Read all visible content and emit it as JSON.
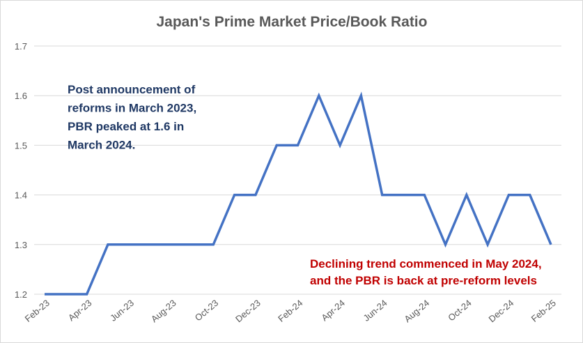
{
  "chart_data": {
    "type": "line",
    "title": "Japan's Prime Market Price/Book Ratio",
    "xlabel": "",
    "ylabel": "",
    "x": [
      "Feb-23",
      "Mar-23",
      "Apr-23",
      "May-23",
      "Jun-23",
      "Jul-23",
      "Aug-23",
      "Sep-23",
      "Oct-23",
      "Nov-23",
      "Dec-23",
      "Jan-24",
      "Feb-24",
      "Mar-24",
      "Apr-24",
      "May-24",
      "Jun-24",
      "Jul-24",
      "Aug-24",
      "Sep-24",
      "Oct-24",
      "Nov-24",
      "Dec-24",
      "Jan-25",
      "Feb-25"
    ],
    "xtick_labels": [
      "Feb-23",
      "Apr-23",
      "Jun-23",
      "Aug-23",
      "Oct-23",
      "Dec-23",
      "Feb-24",
      "Apr-24",
      "Jun-24",
      "Aug-24",
      "Oct-24",
      "Dec-24",
      "Feb-25"
    ],
    "series": [
      {
        "values": [
          1.2,
          1.2,
          1.2,
          1.3,
          1.3,
          1.3,
          1.3,
          1.3,
          1.3,
          1.4,
          1.4,
          1.5,
          1.5,
          1.6,
          1.5,
          1.6,
          1.4,
          1.4,
          1.4,
          1.3,
          1.4,
          1.3,
          1.4,
          1.4,
          1.3
        ]
      }
    ],
    "ylim": [
      1.2,
      1.7
    ],
    "yticks": [
      "1.2",
      "1.3",
      "1.4",
      "1.5",
      "1.6",
      "1.7"
    ],
    "grid": true,
    "legend": "none",
    "annotations": [
      {
        "lines": [
          "Post announcement of",
          "reforms in March 2023,",
          "PBR peaked at 1.6 in",
          "March 2024."
        ],
        "color": "#1f3864"
      },
      {
        "lines": [
          "Declining trend commenced in May 2024,",
          "and the PBR is back at pre-reform levels"
        ],
        "color": "#c00000"
      }
    ],
    "colors": {
      "line": "#4472c4",
      "grid": "#d9d9d9",
      "axis_text": "#595959"
    }
  }
}
